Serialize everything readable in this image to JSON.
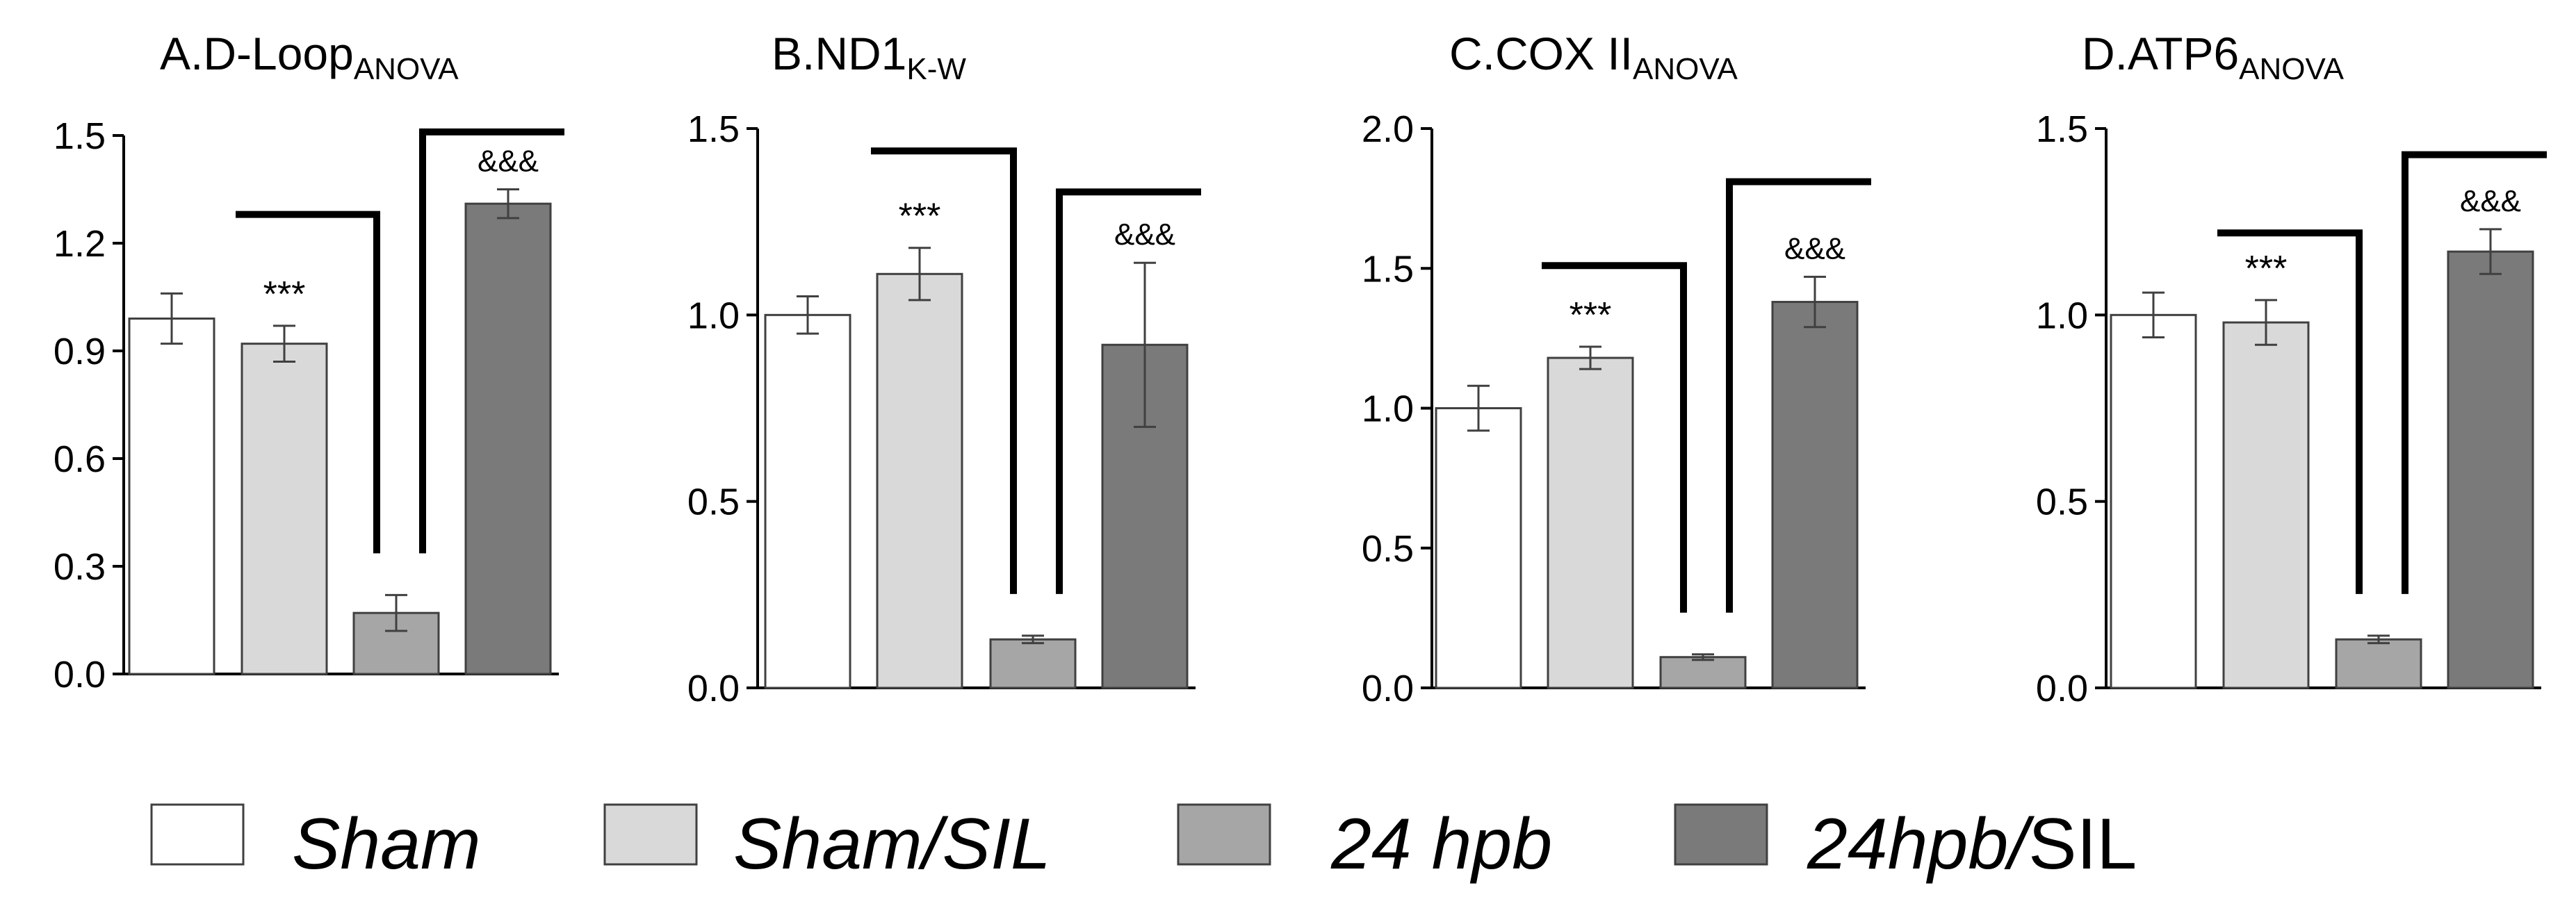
{
  "chart_data": [
    {
      "type": "bar",
      "title": "A.D-Loop",
      "title_sub": "ANOVA",
      "categories": [
        "Sham",
        "Sham/SIL",
        "24 hpb",
        "24hpb/SIL"
      ],
      "values": [
        0.99,
        0.92,
        0.17,
        1.31
      ],
      "errors": [
        0.07,
        0.05,
        0.05,
        0.04
      ],
      "ylim": [
        0,
        1.5
      ],
      "yticks": [
        "0.0",
        "0.3",
        "0.6",
        "0.9",
        "1.2",
        "1.5"
      ],
      "significance": [
        {
          "label": "***",
          "compare": [
            "Sham/SIL",
            "24 hpb"
          ],
          "level": 1.28
        },
        {
          "label": "&&&",
          "compare": [
            "24 hpb",
            "24hpb/SIL"
          ],
          "level": 1.51
        }
      ]
    },
    {
      "type": "bar",
      "title": "B.ND1",
      "title_sub": "K-W",
      "categories": [
        "Sham",
        "Sham/SIL",
        "24 hpb",
        "24hpb/SIL"
      ],
      "values": [
        1.0,
        1.11,
        0.13,
        0.92
      ],
      "errors": [
        0.05,
        0.07,
        0.01,
        0.22
      ],
      "ylim": [
        0,
        1.5
      ],
      "yticks": [
        "0.0",
        "0.5",
        "1.0",
        "1.5"
      ],
      "significance": [
        {
          "label": "***",
          "compare": [
            "Sham/SIL",
            "24 hpb"
          ],
          "level": 1.44
        },
        {
          "label": "&&&",
          "compare": [
            "24 hpb",
            "24hpb/SIL"
          ],
          "level": 1.33
        }
      ]
    },
    {
      "type": "bar",
      "title": "C.COX II",
      "title_sub": "ANOVA",
      "categories": [
        "Sham",
        "Sham/SIL",
        "24 hpb",
        "24hpb/SIL"
      ],
      "values": [
        1.0,
        1.18,
        0.11,
        1.38
      ],
      "errors": [
        0.08,
        0.04,
        0.01,
        0.09
      ],
      "ylim": [
        0,
        2.0
      ],
      "yticks": [
        "0.0",
        "0.5",
        "1.0",
        "1.5",
        "2.0"
      ],
      "significance": [
        {
          "label": "***",
          "compare": [
            "Sham/SIL",
            "24 hpb"
          ],
          "level": 1.51
        },
        {
          "label": "&&&",
          "compare": [
            "24 hpb",
            "24hpb/SIL"
          ],
          "level": 1.81
        }
      ]
    },
    {
      "type": "bar",
      "title": "D.ATP6",
      "title_sub": "ANOVA",
      "categories": [
        "Sham",
        "Sham/SIL",
        "24 hpb",
        "24hpb/SIL"
      ],
      "values": [
        1.0,
        0.98,
        0.13,
        1.17
      ],
      "errors": [
        0.06,
        0.06,
        0.01,
        0.06
      ],
      "ylim": [
        0,
        1.5
      ],
      "yticks": [
        "0.0",
        "0.5",
        "1.0",
        "1.5"
      ],
      "significance": [
        {
          "label": "***",
          "compare": [
            "Sham/SIL",
            "24 hpb"
          ],
          "level": 1.22
        },
        {
          "label": "&&&",
          "compare": [
            "24 hpb",
            "24hpb/SIL"
          ],
          "level": 1.43
        }
      ]
    }
  ],
  "legend": [
    {
      "label_a": "Sham",
      "label_b": "",
      "color": "#ffffff"
    },
    {
      "label_a": "Sham/SIL",
      "label_b": "",
      "color": "#d9d9d9"
    },
    {
      "label_a": "24 hpb",
      "label_b": "",
      "color": "#a6a6a6"
    },
    {
      "label_a": "24hpb/",
      "label_b": "SIL",
      "color": "#7a7a7a"
    }
  ],
  "colors": {
    "bar_outline": "#404040",
    "axis": "#000000",
    "bracket": "#000000"
  }
}
